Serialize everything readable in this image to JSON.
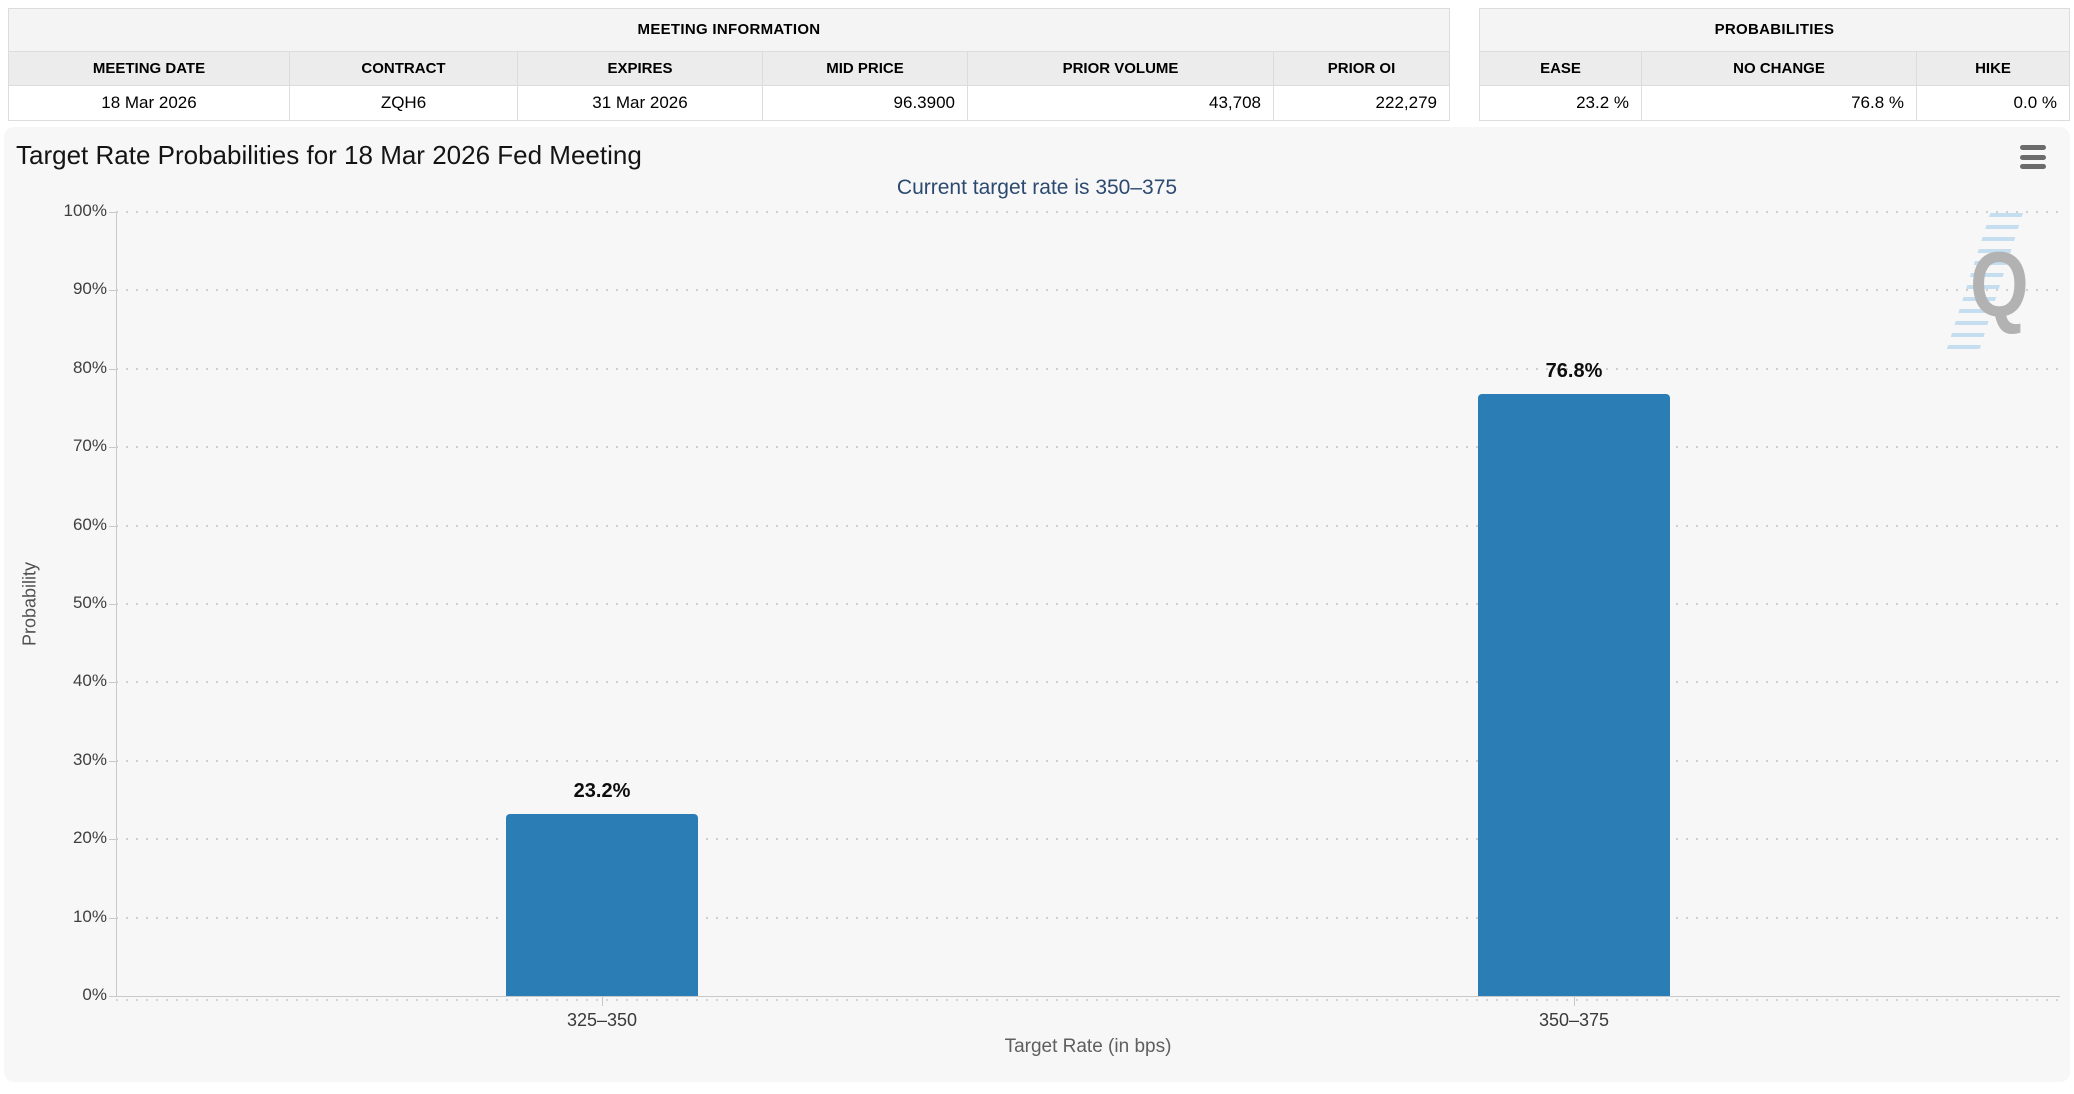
{
  "meeting_information": {
    "title": "MEETING INFORMATION",
    "columns": [
      "MEETING DATE",
      "CONTRACT",
      "EXPIRES",
      "MID PRICE",
      "PRIOR VOLUME",
      "PRIOR OI"
    ],
    "row": [
      "18 Mar 2026",
      "ZQH6",
      "31 Mar 2026",
      "96.3900",
      "43,708",
      "222,279"
    ]
  },
  "probabilities": {
    "title": "PROBABILITIES",
    "columns": [
      "EASE",
      "NO CHANGE",
      "HIKE"
    ],
    "row": [
      "23.2 %",
      "76.8 %",
      "0.0 %"
    ]
  },
  "chart": {
    "title": "Target Rate Probabilities for 18 Mar 2026 Fed Meeting",
    "subtitle": "Current target rate is 350–375",
    "menu_icon": "hamburger-menu-icon",
    "watermark_letter": "Q"
  },
  "chart_data": {
    "type": "bar",
    "title": "Target Rate Probabilities for 18 Mar 2026 Fed Meeting",
    "subtitle": "Current target rate is 350–375",
    "categories": [
      "325–350",
      "350–375"
    ],
    "values": [
      23.2,
      76.8
    ],
    "bar_labels": [
      "23.2%",
      "76.8%"
    ],
    "xlabel": "Target Rate (in bps)",
    "ylabel": "Probability",
    "ylim": [
      0,
      100
    ],
    "ytick_labels": [
      "0%",
      "10%",
      "20%",
      "30%",
      "40%",
      "50%",
      "60%",
      "70%",
      "80%",
      "90%",
      "100%"
    ],
    "grid": "dotted-horizontal",
    "legend": "none",
    "bar_color": "#2b7db6"
  },
  "colors": {
    "bar": "#2b7db6",
    "subtitle_navy": "#2c4a70",
    "container_bg": "#f7f7f7",
    "axis_line": "#c8c8c8",
    "grid_dot": "#cfcfcf",
    "watermark_gray": "#b2b2b2",
    "watermark_blue": "#bcd9ee"
  }
}
